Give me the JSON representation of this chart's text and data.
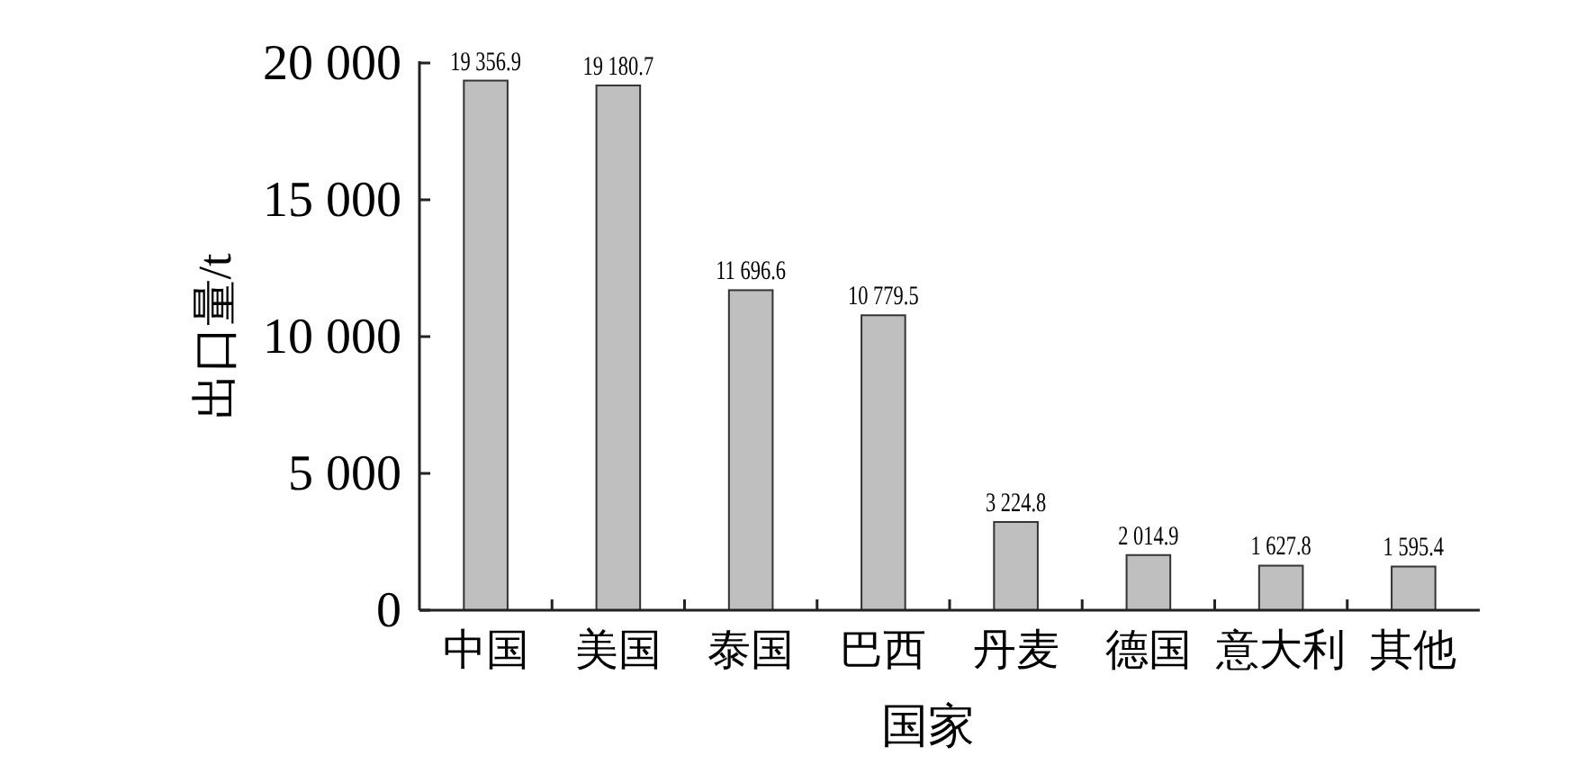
{
  "chart_data": {
    "type": "bar",
    "xlabel": "国家",
    "ylabel": "出口量/t",
    "categories": [
      "中国",
      "美国",
      "泰国",
      "巴西",
      "丹麦",
      "德国",
      "意大利",
      "其他"
    ],
    "values": [
      19356.9,
      19180.7,
      11696.6,
      10779.5,
      3224.8,
      2014.9,
      1627.8,
      1595.4
    ],
    "value_labels": [
      "19 356.9",
      "19 180.7",
      "11 696.6",
      "10 779.5",
      "3 224.8",
      "2 014.9",
      "1 627.8",
      "1 595.4"
    ],
    "color": "#bfbfbf",
    "ylim": [
      0,
      20000
    ],
    "yticks": [
      0,
      {
        "value": 5000,
        "label": "5 000"
      },
      {
        "value": 10000,
        "label": "10 000"
      },
      {
        "value": 15000,
        "label": "15 000"
      },
      {
        "value": 20000,
        "label": "20 000"
      }
    ],
    "grid": false
  }
}
